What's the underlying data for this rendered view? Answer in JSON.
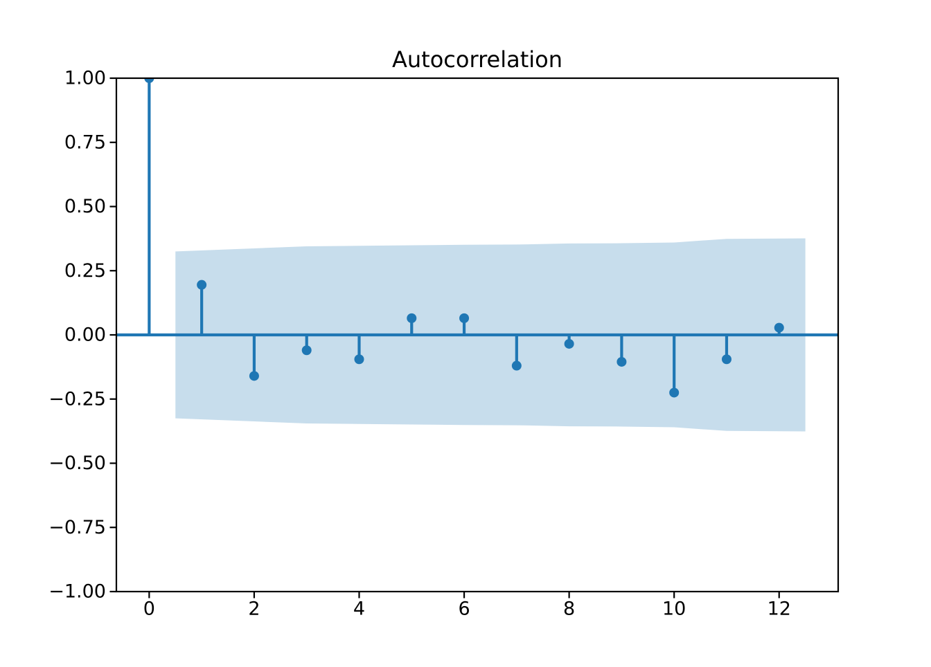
{
  "chart_data": {
    "type": "stem",
    "title": "Autocorrelation",
    "xlabel": "",
    "ylabel": "",
    "grid": false,
    "legend": null,
    "x": [
      0,
      1,
      2,
      3,
      4,
      5,
      6,
      7,
      8,
      9,
      10,
      11,
      12
    ],
    "values": [
      1.0,
      0.195,
      -0.16,
      -0.06,
      -0.095,
      0.065,
      0.065,
      -0.12,
      -0.035,
      -0.105,
      -0.225,
      -0.095,
      0.028
    ],
    "confidence_band": {
      "x": [
        0.5,
        2,
        3,
        4,
        5,
        6,
        7,
        8,
        9,
        10,
        11,
        12.5
      ],
      "upper": [
        0.325,
        0.337,
        0.345,
        0.347,
        0.349,
        0.351,
        0.352,
        0.356,
        0.357,
        0.36,
        0.374,
        0.376
      ],
      "lower": [
        -0.325,
        -0.337,
        -0.345,
        -0.347,
        -0.349,
        -0.351,
        -0.352,
        -0.356,
        -0.357,
        -0.36,
        -0.374,
        -0.376
      ]
    },
    "xlim": [
      -0.625,
      13.125
    ],
    "ylim": [
      -1.0,
      1.0
    ],
    "xticks": [
      0,
      2,
      4,
      6,
      8,
      10,
      12
    ],
    "xtick_labels": [
      "0",
      "2",
      "4",
      "6",
      "8",
      "10",
      "12"
    ],
    "yticks": [
      1.0,
      0.75,
      0.5,
      0.25,
      0.0,
      -0.25,
      -0.5,
      -0.75,
      -1.0
    ],
    "ytick_labels": [
      "1.00",
      "0.75",
      "0.50",
      "0.25",
      "0.00",
      "−0.25",
      "−0.50",
      "−0.75",
      "−1.00"
    ],
    "zero_line": true,
    "colors": {
      "line": "#1f77b4",
      "band": "#1f77b4",
      "band_alpha": 0.25,
      "axes": "#000000",
      "background": "#ffffff"
    }
  }
}
